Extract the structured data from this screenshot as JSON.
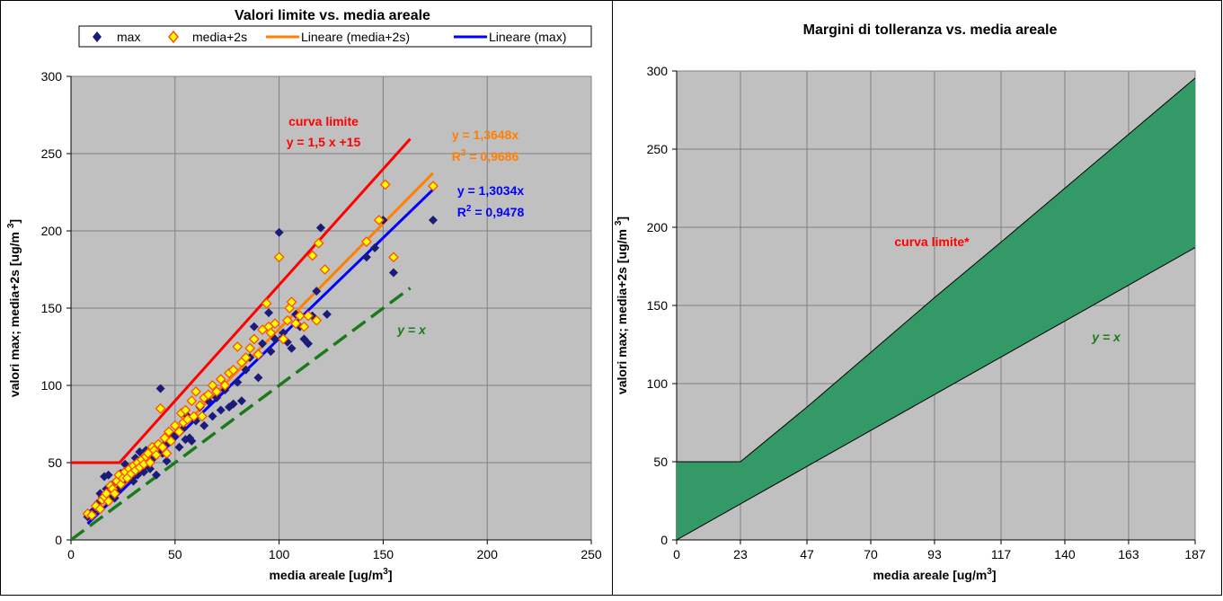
{
  "chart_data": [
    {
      "type": "scatter",
      "title": "Valori limite vs. media areale",
      "xlabel": "media areale [ug/m",
      "xlabel_sup": "3",
      "xlabel_end": "]",
      "ylabel": "valori max; media+2s   [ug/m ",
      "ylabel_sup": "3",
      "ylabel_end": "]",
      "xlim": [
        0,
        250
      ],
      "ylim": [
        0,
        300
      ],
      "xticks": [
        0,
        50,
        100,
        150,
        200,
        250
      ],
      "yticks": [
        0,
        50,
        100,
        150,
        200,
        250,
        300
      ],
      "grid": true,
      "legend_position": "top",
      "legend": {
        "max": "max",
        "media2s": "media+2s",
        "lin_media2s": "Lineare (media+2s)",
        "lin_max": "Lineare (max)"
      },
      "colors": {
        "plot_bg": "#c0c0c0",
        "max_marker": "#1b1b7a",
        "media2s_fill": "#ffff00",
        "media2s_edge": "#ff5000",
        "limit_curve": "#ff0000",
        "trend_media2s": "#ff7f00",
        "trend_max": "#0000ff",
        "identity": "#1a7a1a"
      },
      "annotations": {
        "limit_title": "curva limite",
        "limit_eq": "y = 1,5 x +15",
        "eq_media2s": "y = 1,3648x",
        "r2_media2s_pre": "R",
        "r2_media2s_post": " = 0,9686",
        "eq_max": "y = 1,3034x",
        "r2_max_pre": "R",
        "r2_max_post": " = 0,9478",
        "r2_sup": "2",
        "identity": "y = x"
      },
      "series": [
        {
          "name": "max",
          "points": [
            [
              8,
              15
            ],
            [
              10,
              18
            ],
            [
              12,
              20
            ],
            [
              13,
              24
            ],
            [
              14,
              30
            ],
            [
              15,
              28
            ],
            [
              16,
              41
            ],
            [
              17,
              33
            ],
            [
              18,
              42
            ],
            [
              19,
              30
            ],
            [
              20,
              36
            ],
            [
              21,
              27
            ],
            [
              22,
              38
            ],
            [
              23,
              33
            ],
            [
              24,
              43
            ],
            [
              25,
              38
            ],
            [
              26,
              49
            ],
            [
              27,
              46
            ],
            [
              28,
              41
            ],
            [
              29,
              45
            ],
            [
              30,
              38
            ],
            [
              31,
              53
            ],
            [
              32,
              42
            ],
            [
              33,
              57
            ],
            [
              34,
              50
            ],
            [
              35,
              44
            ],
            [
              36,
              58
            ],
            [
              37,
              48
            ],
            [
              38,
              46
            ],
            [
              39,
              52
            ],
            [
              40,
              60
            ],
            [
              41,
              42
            ],
            [
              42,
              58
            ],
            [
              43,
              98
            ],
            [
              44,
              56
            ],
            [
              45,
              62
            ],
            [
              46,
              51
            ],
            [
              48,
              65
            ],
            [
              50,
              68
            ],
            [
              52,
              60
            ],
            [
              54,
              72
            ],
            [
              55,
              65
            ],
            [
              56,
              80
            ],
            [
              57,
              66
            ],
            [
              58,
              64
            ],
            [
              60,
              77
            ],
            [
              62,
              86
            ],
            [
              64,
              74
            ],
            [
              66,
              90
            ],
            [
              68,
              80
            ],
            [
              70,
              92
            ],
            [
              72,
              84
            ],
            [
              74,
              97
            ],
            [
              76,
              86
            ],
            [
              78,
              88
            ],
            [
              80,
              102
            ],
            [
              82,
              90
            ],
            [
              84,
              110
            ],
            [
              86,
              118
            ],
            [
              88,
              138
            ],
            [
              90,
              105
            ],
            [
              92,
              127
            ],
            [
              95,
              147
            ],
            [
              96,
              122
            ],
            [
              98,
              130
            ],
            [
              100,
              199
            ],
            [
              102,
              134
            ],
            [
              104,
              128
            ],
            [
              106,
              124
            ],
            [
              108,
              146
            ],
            [
              110,
              138
            ],
            [
              112,
              130
            ],
            [
              114,
              127
            ],
            [
              116,
              145
            ],
            [
              118,
              161
            ],
            [
              120,
              202
            ],
            [
              123,
              146
            ],
            [
              142,
              183
            ],
            [
              146,
              189
            ],
            [
              150,
              207
            ],
            [
              155,
              173
            ],
            [
              174,
              207
            ]
          ]
        },
        {
          "name": "media+2s",
          "points": [
            [
              8,
              17
            ],
            [
              10,
              16
            ],
            [
              12,
              22
            ],
            [
              14,
              20
            ],
            [
              15,
              26
            ],
            [
              16,
              28
            ],
            [
              17,
              30
            ],
            [
              18,
              25
            ],
            [
              19,
              35
            ],
            [
              20,
              33
            ],
            [
              21,
              30
            ],
            [
              22,
              38
            ],
            [
              23,
              42
            ],
            [
              24,
              36
            ],
            [
              25,
              40
            ],
            [
              26,
              44
            ],
            [
              27,
              40
            ],
            [
              28,
              46
            ],
            [
              29,
              43
            ],
            [
              30,
              48
            ],
            [
              31,
              45
            ],
            [
              32,
              50
            ],
            [
              33,
              47
            ],
            [
              34,
              52
            ],
            [
              35,
              49
            ],
            [
              36,
              54
            ],
            [
              37,
              56
            ],
            [
              38,
              50
            ],
            [
              39,
              60
            ],
            [
              40,
              58
            ],
            [
              41,
              55
            ],
            [
              42,
              62
            ],
            [
              43,
              85
            ],
            [
              44,
              60
            ],
            [
              45,
              66
            ],
            [
              46,
              56
            ],
            [
              47,
              70
            ],
            [
              48,
              64
            ],
            [
              50,
              74
            ],
            [
              52,
              70
            ],
            [
              53,
              82
            ],
            [
              54,
              76
            ],
            [
              55,
              84
            ],
            [
              56,
              78
            ],
            [
              58,
              90
            ],
            [
              59,
              80
            ],
            [
              60,
              96
            ],
            [
              62,
              87
            ],
            [
              63,
              80
            ],
            [
              64,
              92
            ],
            [
              66,
              94
            ],
            [
              68,
              100
            ],
            [
              70,
              96
            ],
            [
              72,
              104
            ],
            [
              74,
              100
            ],
            [
              76,
              108
            ],
            [
              78,
              110
            ],
            [
              80,
              125
            ],
            [
              82,
              115
            ],
            [
              84,
              118
            ],
            [
              86,
              124
            ],
            [
              88,
              130
            ],
            [
              90,
              120
            ],
            [
              92,
              136
            ],
            [
              94,
              153
            ],
            [
              95,
              138
            ],
            [
              96,
              134
            ],
            [
              98,
              140
            ],
            [
              100,
              183
            ],
            [
              102,
              130
            ],
            [
              104,
              142
            ],
            [
              105,
              150
            ],
            [
              106,
              154
            ],
            [
              108,
              140
            ],
            [
              110,
              145
            ],
            [
              112,
              138
            ],
            [
              114,
              145
            ],
            [
              116,
              184
            ],
            [
              118,
              142
            ],
            [
              119,
              192
            ],
            [
              122,
              175
            ],
            [
              142,
              193
            ],
            [
              148,
              207
            ],
            [
              151,
              230
            ],
            [
              155,
              183
            ],
            [
              174,
              229
            ]
          ]
        }
      ],
      "lines": {
        "limit": {
          "name": "curva limite",
          "points": [
            [
              0,
              50
            ],
            [
              23.33,
              50
            ],
            [
              163,
              259.5
            ]
          ]
        },
        "trend_media2s": {
          "name": "Lineare (media+2s)",
          "slope": 1.3648,
          "x_range": [
            8,
            174
          ]
        },
        "trend_max": {
          "name": "Lineare (max)",
          "slope": 1.3034,
          "x_range": [
            8,
            174
          ]
        },
        "identity": {
          "name": "y = x",
          "points": [
            [
              0,
              0
            ],
            [
              163,
              163
            ]
          ]
        }
      }
    },
    {
      "type": "area",
      "title": "Margini di tolleranza vs. media areale",
      "xlabel": "media areale [ug/m",
      "xlabel_sup": "3",
      "xlabel_end": "]",
      "ylabel": "valori max; media+2s   [ug/m ",
      "ylabel_sup": "3",
      "ylabel_end": "]",
      "categories": [
        0,
        23,
        47,
        70,
        93,
        117,
        140,
        163,
        187
      ],
      "x_max": 187,
      "ylim": [
        0,
        300
      ],
      "yticks": [
        0,
        50,
        100,
        150,
        200,
        250,
        300
      ],
      "grid": true,
      "colors": {
        "plot_bg": "#c0c0c0",
        "band": "#339966",
        "limit_label": "#ff0000",
        "identity_label": "#1a7a1a"
      },
      "annotations": {
        "limit": "curva limite*",
        "identity": "y = x"
      },
      "series": [
        {
          "name": "curva limite*",
          "values": [
            50,
            50,
            85,
            120,
            155,
            190.5,
            225,
            259.5,
            295.5
          ]
        },
        {
          "name": "y = x",
          "values": [
            0,
            23,
            47,
            70,
            93,
            117,
            140,
            163,
            187
          ]
        }
      ]
    }
  ]
}
